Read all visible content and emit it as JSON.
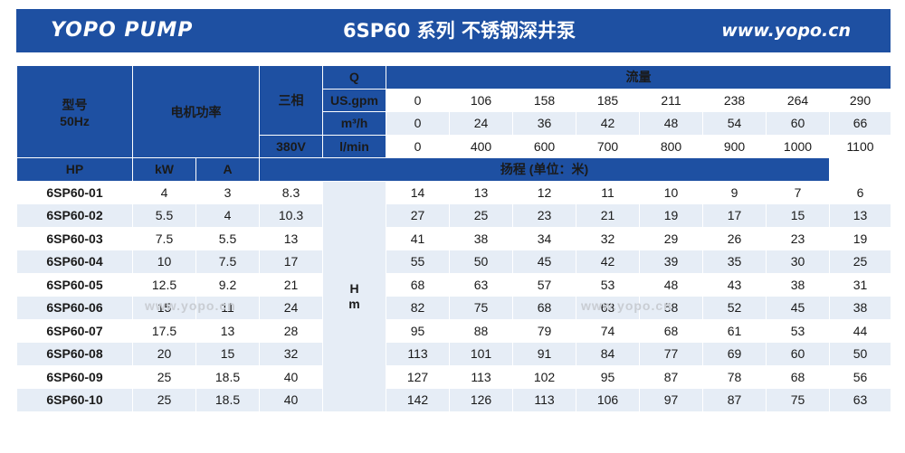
{
  "banner": {
    "brand": "YOPO  PUMP",
    "title": "6SP60  系列 不锈钢深井泵",
    "website": "www.yopo.cn"
  },
  "header": {
    "model_label": "型号",
    "freq_label": "50Hz",
    "power_label": "电机功率",
    "phase_label": "三相",
    "voltage_label": "380V",
    "q_label": "Q",
    "flow_label": "流量",
    "units": [
      "US.gpm",
      "m³/h",
      "l/min"
    ],
    "hp_label": "HP",
    "kw_label": "kW",
    "amp_label": "A",
    "head_label": "扬程 (单位：米)",
    "hm_h": "H",
    "hm_m": "m"
  },
  "flow_rows": [
    [
      "0",
      "106",
      "158",
      "185",
      "211",
      "238",
      "264",
      "290"
    ],
    [
      "0",
      "24",
      "36",
      "42",
      "48",
      "54",
      "60",
      "66"
    ],
    [
      "0",
      "400",
      "600",
      "700",
      "800",
      "900",
      "1000",
      "1100"
    ]
  ],
  "rows": [
    {
      "model": "6SP60-01",
      "hp": "4",
      "kw": "3",
      "a": "8.3",
      "head": [
        "14",
        "13",
        "12",
        "11",
        "10",
        "9",
        "7",
        "6"
      ]
    },
    {
      "model": "6SP60-02",
      "hp": "5.5",
      "kw": "4",
      "a": "10.3",
      "head": [
        "27",
        "25",
        "23",
        "21",
        "19",
        "17",
        "15",
        "13"
      ]
    },
    {
      "model": "6SP60-03",
      "hp": "7.5",
      "kw": "5.5",
      "a": "13",
      "head": [
        "41",
        "38",
        "34",
        "32",
        "29",
        "26",
        "23",
        "19"
      ]
    },
    {
      "model": "6SP60-04",
      "hp": "10",
      "kw": "7.5",
      "a": "17",
      "head": [
        "55",
        "50",
        "45",
        "42",
        "39",
        "35",
        "30",
        "25"
      ]
    },
    {
      "model": "6SP60-05",
      "hp": "12.5",
      "kw": "9.2",
      "a": "21",
      "head": [
        "68",
        "63",
        "57",
        "53",
        "48",
        "43",
        "38",
        "31"
      ]
    },
    {
      "model": "6SP60-06",
      "hp": "15",
      "kw": "11",
      "a": "24",
      "head": [
        "82",
        "75",
        "68",
        "63",
        "58",
        "52",
        "45",
        "38"
      ]
    },
    {
      "model": "6SP60-07",
      "hp": "17.5",
      "kw": "13",
      "a": "28",
      "head": [
        "95",
        "88",
        "79",
        "74",
        "68",
        "61",
        "53",
        "44"
      ]
    },
    {
      "model": "6SP60-08",
      "hp": "20",
      "kw": "15",
      "a": "32",
      "head": [
        "113",
        "101",
        "91",
        "84",
        "77",
        "69",
        "60",
        "50"
      ]
    },
    {
      "model": "6SP60-09",
      "hp": "25",
      "kw": "18.5",
      "a": "40",
      "head": [
        "127",
        "113",
        "102",
        "95",
        "87",
        "78",
        "68",
        "56"
      ]
    },
    {
      "model": "6SP60-10",
      "hp": "25",
      "kw": "18.5",
      "a": "40",
      "head": [
        "142",
        "126",
        "113",
        "106",
        "97",
        "87",
        "75",
        "63"
      ]
    }
  ],
  "watermark": "www.yopo.cn"
}
